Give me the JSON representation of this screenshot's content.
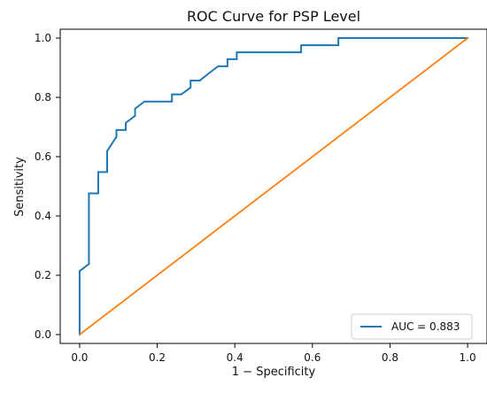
{
  "chart_data": {
    "type": "line",
    "title": "ROC Curve for PSP Level",
    "xlabel": "1 − Specificity",
    "ylabel": "Sensitivity",
    "xlim": [
      -0.05,
      1.05
    ],
    "ylim": [
      -0.03,
      1.03
    ],
    "x_ticks": [
      "0.0",
      "0.2",
      "0.4",
      "0.6",
      "0.8",
      "1.0"
    ],
    "y_ticks": [
      "0.0",
      "0.2",
      "0.4",
      "0.6",
      "0.8",
      "1.0"
    ],
    "grid": false,
    "legend": {
      "placement": "lower-right",
      "entries": [
        "AUC = 0.883"
      ]
    },
    "series": [
      {
        "name": "AUC = 0.883",
        "color": "#1f77b4",
        "points": [
          [
            0.0,
            0.0
          ],
          [
            0.0,
            0.214
          ],
          [
            0.024,
            0.238
          ],
          [
            0.024,
            0.476
          ],
          [
            0.048,
            0.476
          ],
          [
            0.048,
            0.548
          ],
          [
            0.071,
            0.548
          ],
          [
            0.071,
            0.619
          ],
          [
            0.083,
            0.643
          ],
          [
            0.095,
            0.667
          ],
          [
            0.095,
            0.69
          ],
          [
            0.119,
            0.69
          ],
          [
            0.119,
            0.714
          ],
          [
            0.143,
            0.738
          ],
          [
            0.143,
            0.762
          ],
          [
            0.167,
            0.786
          ],
          [
            0.238,
            0.786
          ],
          [
            0.238,
            0.81
          ],
          [
            0.262,
            0.81
          ],
          [
            0.286,
            0.833
          ],
          [
            0.286,
            0.857
          ],
          [
            0.31,
            0.857
          ],
          [
            0.333,
            0.881
          ],
          [
            0.357,
            0.905
          ],
          [
            0.381,
            0.905
          ],
          [
            0.381,
            0.929
          ],
          [
            0.405,
            0.929
          ],
          [
            0.405,
            0.952
          ],
          [
            0.571,
            0.952
          ],
          [
            0.571,
            0.976
          ],
          [
            0.667,
            0.976
          ],
          [
            0.667,
            1.0
          ],
          [
            1.0,
            1.0
          ]
        ]
      },
      {
        "color": "#ff7f0e",
        "points": [
          [
            0.0,
            0.0
          ],
          [
            1.0,
            1.0
          ]
        ]
      }
    ]
  }
}
